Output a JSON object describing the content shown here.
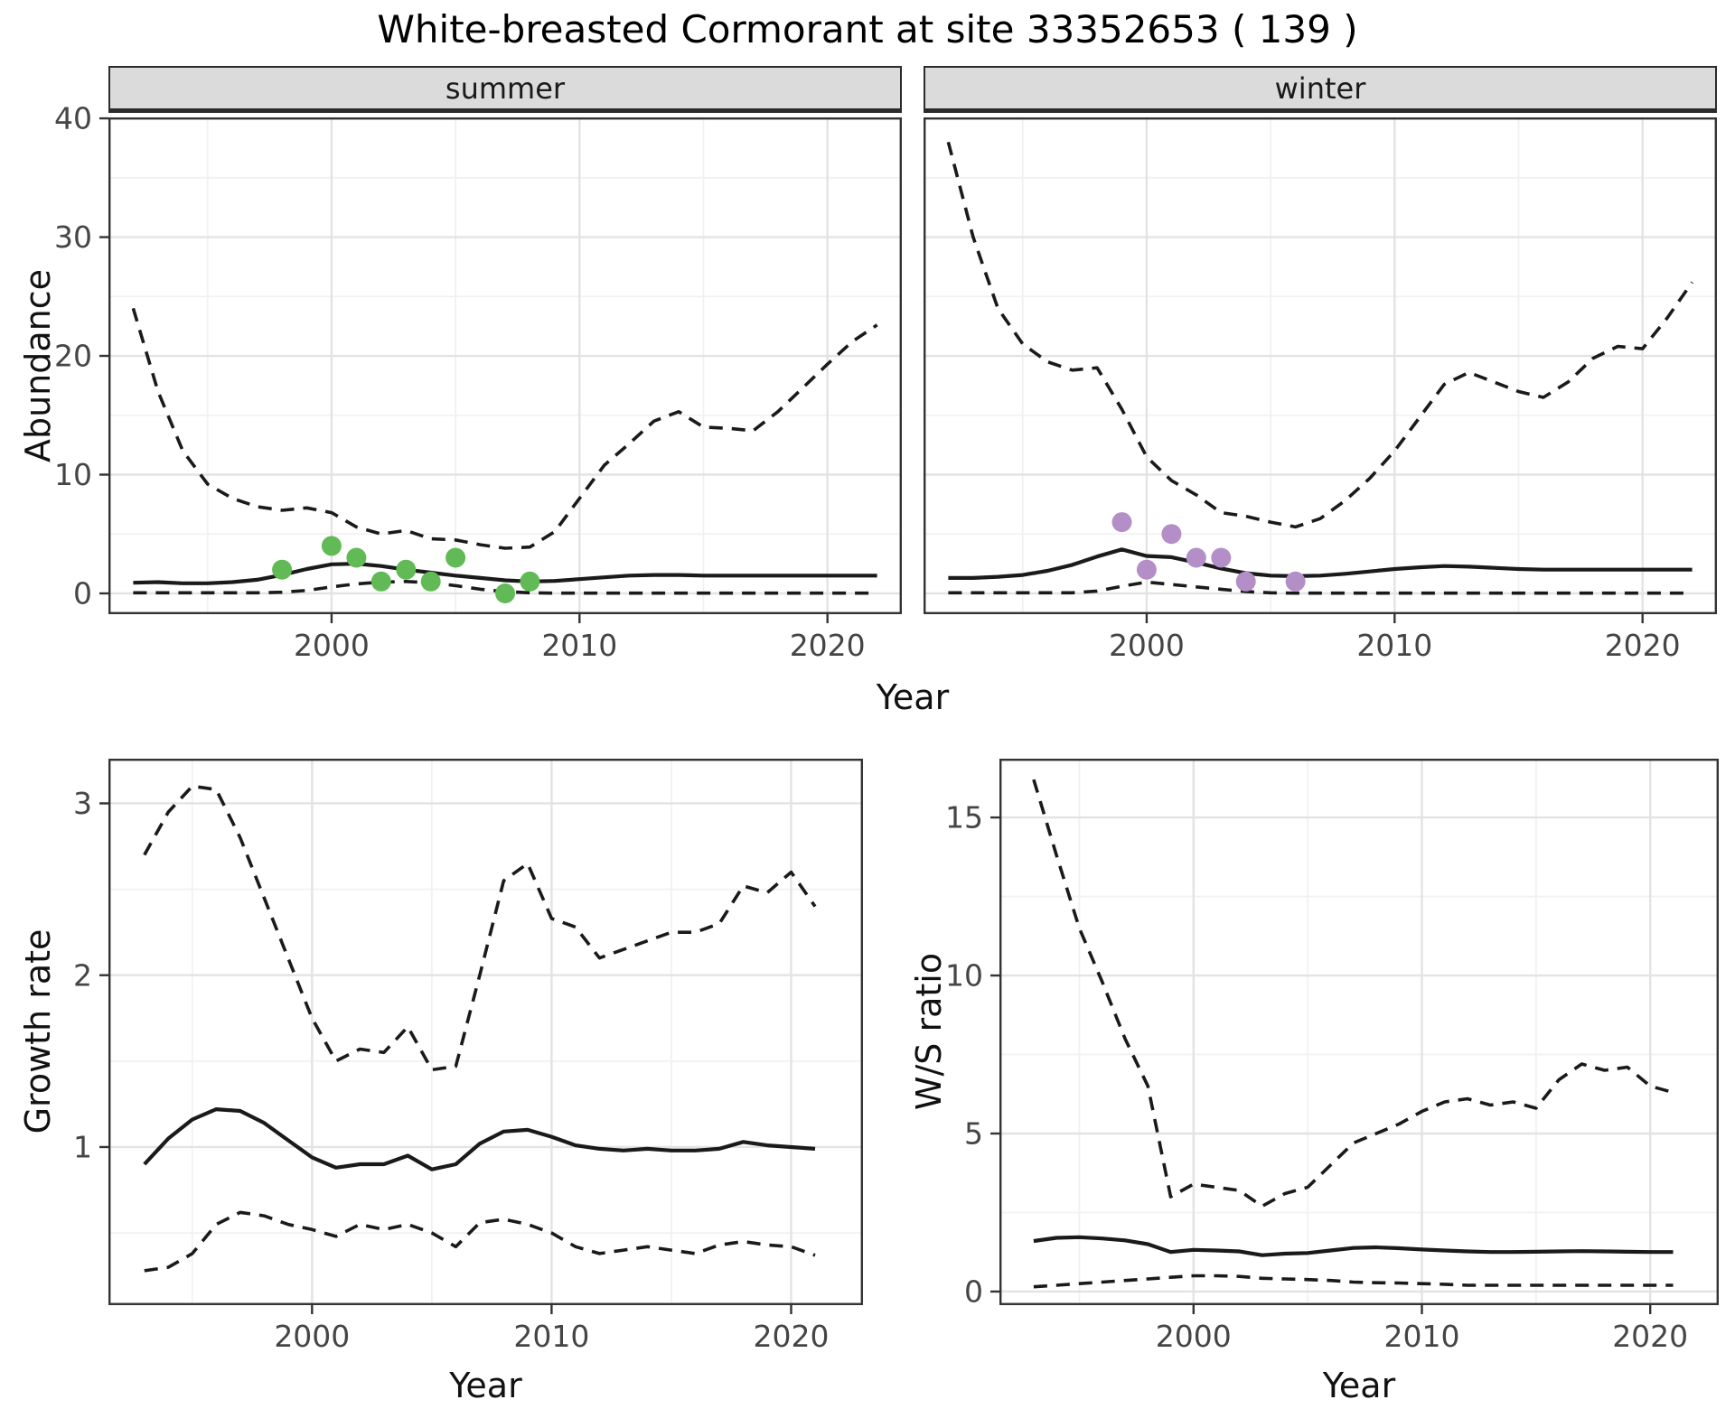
{
  "title": "White-breasted Cormorant at site 33352653 ( 139 )",
  "colors": {
    "line": "#1a1a1a",
    "summer_points": "#61BA55",
    "winter_points": "#B48EC7",
    "strip_bg": "#DBDBDB",
    "grid_major": "#E3E3E3",
    "grid_minor": "#F1F1F1",
    "axis_text": "#454545",
    "panel_border": "#333333"
  },
  "chart_data": [
    {
      "id": "abundance_summer",
      "type": "line",
      "facet": "summer",
      "xlabel": "Year",
      "ylabel": "Abundance",
      "xlim": [
        1991,
        2023
      ],
      "ylim": [
        -1.75,
        40.08
      ],
      "xticks": [
        2000,
        2010,
        2020
      ],
      "yticks": [
        0,
        10,
        20,
        30,
        40
      ],
      "x": [
        1992,
        1993,
        1994,
        1995,
        1996,
        1997,
        1998,
        1999,
        2000,
        2001,
        2002,
        2003,
        2004,
        2005,
        2006,
        2007,
        2008,
        2009,
        2010,
        2011,
        2012,
        2013,
        2014,
        2015,
        2016,
        2017,
        2018,
        2019,
        2020,
        2021,
        2022
      ],
      "series": [
        {
          "name": "upper_95ci",
          "style": "dashed",
          "values": [
            24,
            17,
            12,
            9.2,
            8,
            7.3,
            7,
            7.2,
            6.8,
            5.6,
            5,
            5.3,
            4.6,
            4.5,
            4.1,
            3.8,
            3.9,
            5.2,
            8,
            10.8,
            12.6,
            14.5,
            15.3,
            14,
            13.9,
            13.7,
            15.3,
            17.3,
            19.3,
            21.2,
            22.6
          ]
        },
        {
          "name": "median",
          "style": "solid",
          "values": [
            0.9,
            0.95,
            0.85,
            0.85,
            0.95,
            1.15,
            1.55,
            2.05,
            2.45,
            2.5,
            2.3,
            2,
            1.75,
            1.5,
            1.3,
            1.1,
            1,
            1.05,
            1.2,
            1.35,
            1.5,
            1.55,
            1.55,
            1.5,
            1.5,
            1.5,
            1.5,
            1.5,
            1.5,
            1.5,
            1.5
          ]
        },
        {
          "name": "lower_95ci",
          "style": "dashed",
          "values": [
            0.05,
            0.05,
            0.05,
            0.05,
            0.05,
            0.05,
            0.1,
            0.25,
            0.55,
            0.8,
            0.95,
            1,
            0.9,
            0.65,
            0.35,
            0.15,
            0.05,
            0.02,
            0.02,
            0.02,
            0.02,
            0.02,
            0.02,
            0.02,
            0.02,
            0.02,
            0.02,
            0.02,
            0.02,
            0.02,
            0.02
          ]
        }
      ],
      "points": {
        "name": "observed_counts",
        "color": "#61BA55",
        "x": [
          1998,
          2000,
          2001,
          2002,
          2003,
          2004,
          2005,
          2007,
          2008
        ],
        "y": [
          2,
          4,
          3,
          1,
          2,
          1,
          3,
          0,
          1
        ]
      }
    },
    {
      "id": "abundance_winter",
      "type": "line",
      "facet": "winter",
      "xlabel": "Year",
      "ylabel": "Abundance",
      "xlim": [
        1991,
        2023
      ],
      "ylim": [
        -1.75,
        40.08
      ],
      "xticks": [
        2000,
        2010,
        2020
      ],
      "yticks": [
        0,
        10,
        20,
        30,
        40
      ],
      "x": [
        1992,
        1993,
        1994,
        1995,
        1996,
        1997,
        1998,
        1999,
        2000,
        2001,
        2002,
        2003,
        2004,
        2005,
        2006,
        2007,
        2008,
        2009,
        2010,
        2011,
        2012,
        2013,
        2014,
        2015,
        2016,
        2017,
        2018,
        2019,
        2020,
        2021,
        2022
      ],
      "series": [
        {
          "name": "upper_95ci",
          "style": "dashed",
          "values": [
            38,
            30,
            24,
            21,
            19.5,
            18.8,
            19,
            15.5,
            11.5,
            9.5,
            8.3,
            6.8,
            6.5,
            6,
            5.6,
            6.3,
            7.8,
            9.7,
            12,
            14.8,
            17.6,
            18.6,
            17.8,
            17,
            16.5,
            17.8,
            19.8,
            20.8,
            20.6,
            23.2,
            26.2
          ]
        },
        {
          "name": "median",
          "style": "solid",
          "values": [
            1.3,
            1.3,
            1.4,
            1.55,
            1.9,
            2.4,
            3.1,
            3.7,
            3.15,
            3.05,
            2.6,
            2.1,
            1.7,
            1.5,
            1.45,
            1.5,
            1.65,
            1.85,
            2.05,
            2.2,
            2.3,
            2.25,
            2.15,
            2.05,
            2,
            2,
            2,
            2,
            2,
            2,
            2
          ]
        },
        {
          "name": "lower_95ci",
          "style": "dashed",
          "values": [
            0.05,
            0.05,
            0.05,
            0.05,
            0.05,
            0.05,
            0.2,
            0.6,
            0.95,
            0.75,
            0.55,
            0.35,
            0.15,
            0.05,
            0.02,
            0.02,
            0.02,
            0.02,
            0.02,
            0.02,
            0.02,
            0.02,
            0.02,
            0.02,
            0.02,
            0.02,
            0.02,
            0.02,
            0.02,
            0.02,
            0.02
          ]
        }
      ],
      "points": {
        "name": "observed_counts",
        "color": "#B48EC7",
        "x": [
          1999,
          2000,
          2001,
          2002,
          2003,
          2004,
          2006
        ],
        "y": [
          6,
          2,
          5,
          3,
          3,
          1,
          1
        ]
      }
    },
    {
      "id": "growth_rate",
      "type": "line",
      "facet": "",
      "xlabel": "Year",
      "ylabel": "Growth rate",
      "xlim": [
        1991.5,
        2023
      ],
      "ylim": [
        0.08,
        3.26
      ],
      "xticks": [
        2000,
        2010,
        2020
      ],
      "yticks": [
        1,
        2,
        3
      ],
      "x": [
        1993,
        1994,
        1995,
        1996,
        1997,
        1998,
        1999,
        2000,
        2001,
        2002,
        2003,
        2004,
        2005,
        2006,
        2007,
        2008,
        2009,
        2010,
        2011,
        2012,
        2013,
        2014,
        2015,
        2016,
        2017,
        2018,
        2019,
        2020,
        2021
      ],
      "series": [
        {
          "name": "upper_95ci",
          "style": "dashed",
          "values": [
            2.7,
            2.95,
            3.1,
            3.08,
            2.8,
            2.45,
            2.1,
            1.75,
            1.5,
            1.57,
            1.55,
            1.7,
            1.45,
            1.47,
            2,
            2.55,
            2.65,
            2.33,
            2.28,
            2.1,
            2.15,
            2.2,
            2.25,
            2.25,
            2.3,
            2.52,
            2.48,
            2.6,
            2.4
          ]
        },
        {
          "name": "median",
          "style": "solid",
          "values": [
            0.9,
            1.05,
            1.16,
            1.22,
            1.21,
            1.14,
            1.04,
            0.94,
            0.88,
            0.9,
            0.9,
            0.95,
            0.87,
            0.9,
            1.02,
            1.09,
            1.1,
            1.06,
            1.01,
            0.99,
            0.98,
            0.99,
            0.98,
            0.98,
            0.99,
            1.03,
            1.01,
            1,
            0.99
          ]
        },
        {
          "name": "lower_95ci",
          "style": "dashed",
          "values": [
            0.28,
            0.3,
            0.38,
            0.55,
            0.62,
            0.6,
            0.55,
            0.52,
            0.48,
            0.55,
            0.52,
            0.55,
            0.5,
            0.42,
            0.56,
            0.58,
            0.55,
            0.5,
            0.42,
            0.38,
            0.4,
            0.42,
            0.4,
            0.38,
            0.43,
            0.45,
            0.43,
            0.42,
            0.37
          ]
        }
      ]
    },
    {
      "id": "ws_ratio",
      "type": "line",
      "facet": "",
      "xlabel": "Year",
      "ylabel": "W/S ratio",
      "xlim": [
        1991.5,
        2023
      ],
      "ylim": [
        -0.43,
        16.86
      ],
      "xticks": [
        2000,
        2010,
        2020
      ],
      "yticks": [
        0,
        5,
        10,
        15
      ],
      "x": [
        1993,
        1994,
        1995,
        1996,
        1997,
        1998,
        1999,
        2000,
        2001,
        2002,
        2003,
        2004,
        2005,
        2006,
        2007,
        2008,
        2009,
        2010,
        2011,
        2012,
        2013,
        2014,
        2015,
        2016,
        2017,
        2018,
        2019,
        2020,
        2021
      ],
      "series": [
        {
          "name": "upper_95ci",
          "style": "dashed",
          "values": [
            16.2,
            13.8,
            11.5,
            9.8,
            8,
            6.5,
            3,
            3.4,
            3.3,
            3.2,
            2.7,
            3.1,
            3.3,
            4,
            4.7,
            5,
            5.3,
            5.7,
            6,
            6.1,
            5.9,
            6,
            5.8,
            6.7,
            7.2,
            7,
            7.1,
            6.5,
            6.3
          ]
        },
        {
          "name": "median",
          "style": "solid",
          "values": [
            1.6,
            1.7,
            1.72,
            1.68,
            1.62,
            1.5,
            1.25,
            1.32,
            1.3,
            1.27,
            1.15,
            1.2,
            1.22,
            1.3,
            1.38,
            1.4,
            1.37,
            1.33,
            1.3,
            1.27,
            1.25,
            1.25,
            1.26,
            1.27,
            1.28,
            1.27,
            1.26,
            1.25,
            1.25
          ]
        },
        {
          "name": "lower_95ci",
          "style": "dashed",
          "values": [
            0.15,
            0.2,
            0.25,
            0.3,
            0.35,
            0.4,
            0.45,
            0.5,
            0.5,
            0.48,
            0.42,
            0.4,
            0.38,
            0.35,
            0.3,
            0.28,
            0.27,
            0.25,
            0.23,
            0.2,
            0.2,
            0.2,
            0.2,
            0.2,
            0.2,
            0.2,
            0.2,
            0.2,
            0.2
          ]
        }
      ]
    }
  ]
}
